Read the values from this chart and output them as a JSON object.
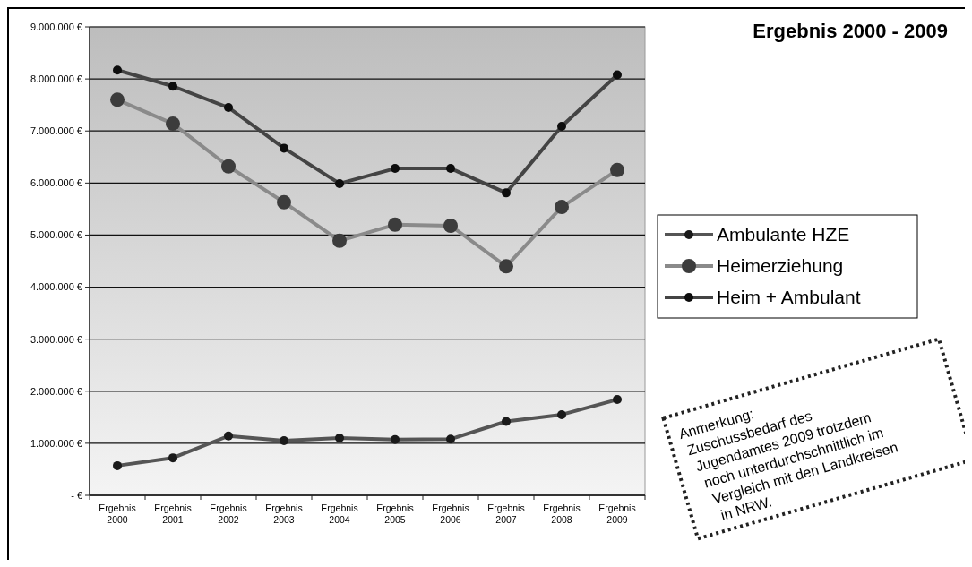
{
  "chart_data": {
    "type": "line",
    "title": "Ergebnis 2000 - 2009",
    "categories": [
      "Ergebnis 2000",
      "Ergebnis 2001",
      "Ergebnis 2002",
      "Ergebnis 2003",
      "Ergebnis 2004",
      "Ergebnis 2005",
      "Ergebnis 2006",
      "Ergebnis 2007",
      "Ergebnis 2008",
      "Ergebnis 2009"
    ],
    "series": [
      {
        "name": "Ambulante HZE",
        "color": "#1a1a1a",
        "values": [
          570000,
          720000,
          1140000,
          1050000,
          1100000,
          1070000,
          1080000,
          1420000,
          1550000,
          1840000
        ]
      },
      {
        "name": "Heimerziehung",
        "color": "#3c3c3c",
        "values": [
          7600000,
          7140000,
          6320000,
          5630000,
          4890000,
          5200000,
          5180000,
          4400000,
          5540000,
          6250000
        ]
      },
      {
        "name": "Heim + Ambulant",
        "color": "#0d0d0d",
        "values": [
          8170000,
          7860000,
          7450000,
          6670000,
          5990000,
          6280000,
          6280000,
          5810000,
          7090000,
          8080000
        ]
      }
    ],
    "ylim": [
      0,
      9000000
    ],
    "yticks": [
      {
        "value": 0,
        "label": "- €"
      },
      {
        "value": 1000000,
        "label": "1.000.000 €"
      },
      {
        "value": 2000000,
        "label": "2.000.000 €"
      },
      {
        "value": 3000000,
        "label": "3.000.000 €"
      },
      {
        "value": 4000000,
        "label": "4.000.000 €"
      },
      {
        "value": 5000000,
        "label": "5.000.000 €"
      },
      {
        "value": 6000000,
        "label": "6.000.000 €"
      },
      {
        "value": 7000000,
        "label": "7.000.000 €"
      },
      {
        "value": 8000000,
        "label": "8.000.000 €"
      },
      {
        "value": 9000000,
        "label": "9.000.000 €"
      }
    ],
    "grid": "y",
    "legend": "right",
    "marker": "circle",
    "line_style": "solid",
    "annotations": [
      "Anmerkung:\nZuschussbedarf des\nJugendamtes 2009 trotzdem\nnoch unterdurchschnittlich im\nVergleich mit den Landkreisen\nin NRW."
    ]
  }
}
